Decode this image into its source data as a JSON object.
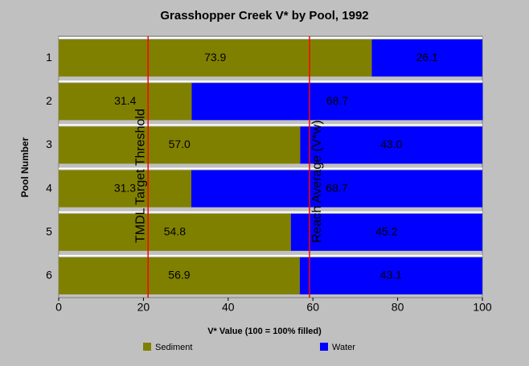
{
  "chart_data": {
    "type": "stacked-horizontal-bar",
    "title": "Grasshopper Creek V* by Pool, 1992",
    "x_label": "V* Value (100 = 100% filled)",
    "y_label": "Pool Number",
    "categories": [
      "1",
      "2",
      "3",
      "4",
      "5",
      "6"
    ],
    "series": [
      {
        "name": "Sediment",
        "color": "#808000",
        "values": [
          73.9,
          31.4,
          57.0,
          31.3,
          54.8,
          56.9
        ],
        "value_labels": [
          "73.9",
          "31.4",
          "57.0",
          "31.3",
          "54.8",
          "56.9"
        ]
      },
      {
        "name": "Water",
        "color": "#0000ff",
        "values": [
          26.1,
          68.7,
          43.0,
          68.7,
          45.2,
          43.1
        ],
        "value_labels": [
          "26.1",
          "68.7",
          "43.0",
          "68.7",
          "45.2",
          "43.1"
        ]
      }
    ],
    "reference_lines": [
      {
        "value": 21.1,
        "label": "TMDL Target Threshold",
        "color": "#ff0000"
      },
      {
        "value": 59.2,
        "label": "Reach Average (V*w)",
        "color": "#ff0000"
      }
    ],
    "xlim": [
      0,
      100
    ],
    "xticks": [
      0,
      20,
      40,
      60,
      80,
      100
    ]
  }
}
